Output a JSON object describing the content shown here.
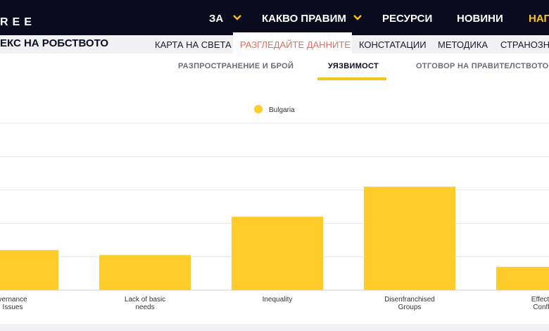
{
  "header": {
    "logo_text": "REE",
    "nav": [
      {
        "label": "ЗА",
        "has_dropdown": true
      },
      {
        "label": "КАКВО ПРАВИМ",
        "has_dropdown": true
      },
      {
        "label": "РЕСУРСИ",
        "has_dropdown": false
      },
      {
        "label": "НОВИНИ",
        "has_dropdown": false
      },
      {
        "label": "НАП",
        "has_dropdown": false
      }
    ],
    "accent_color": "#f5c518"
  },
  "subnav": {
    "title": "ЕКС НА РОБСТВОТО",
    "items": [
      {
        "label": "КАРТА НА СВЕТА"
      },
      {
        "label": "РАЗГЛЕДАЙТЕ ДАННИТЕ",
        "active": true
      },
      {
        "label": "КОНСТАТАЦИИ"
      },
      {
        "label": "МЕТОДИКА"
      },
      {
        "label": "СТРАНОЗНА"
      }
    ]
  },
  "tabs": [
    {
      "label": "РАЗПРОСТРАНЕНИЕ И БРОЙ"
    },
    {
      "label": "УЯЗВИМОСТ",
      "active": true
    },
    {
      "label": "ОТГОВОР НА ПРАВИТЕЛСТВОТО"
    }
  ],
  "chart_data": {
    "type": "bar",
    "categories": [
      "Governance Issues",
      "Lack of basic needs",
      "Inequality",
      "Disenfranchised Groups",
      "Effects of Conflict"
    ],
    "category_labels_visible": [
      [
        "vernance",
        "Issues"
      ],
      [
        "Lack of basic",
        "needs"
      ],
      [
        "Inequality"
      ],
      [
        "Disenfranchised",
        "Groups"
      ],
      [
        "Effects",
        "Confli"
      ]
    ],
    "series": [
      {
        "name": "Bulgaria",
        "color": "#ffcc29",
        "values": [
          12,
          10.5,
          22,
          31,
          7
        ]
      }
    ],
    "ylim": [
      0,
      50
    ],
    "grid": true,
    "legend": "top-center"
  }
}
